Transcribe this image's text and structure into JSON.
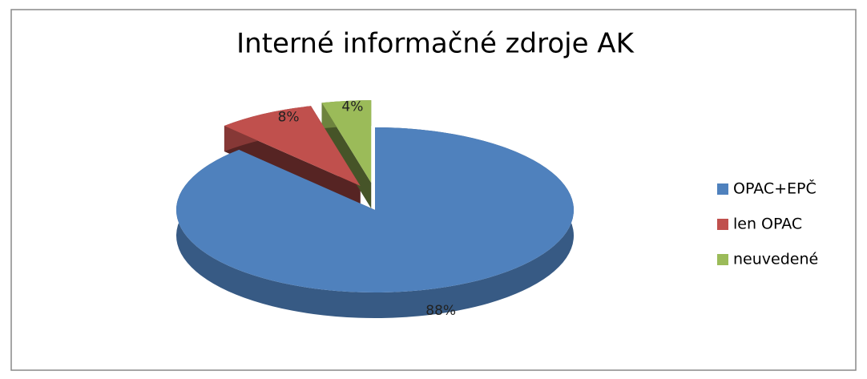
{
  "chart_data": {
    "type": "pie",
    "title": "Interné informačné zdroje AK",
    "categories": [
      "OPAC+EPČ",
      "len OPAC",
      "neuvedené"
    ],
    "values": [
      88,
      8,
      4
    ],
    "value_labels": [
      "88%",
      "8%",
      "4%"
    ],
    "colors": [
      "#4f81bd",
      "#c0504d",
      "#9bbb59"
    ],
    "legend": "right"
  }
}
